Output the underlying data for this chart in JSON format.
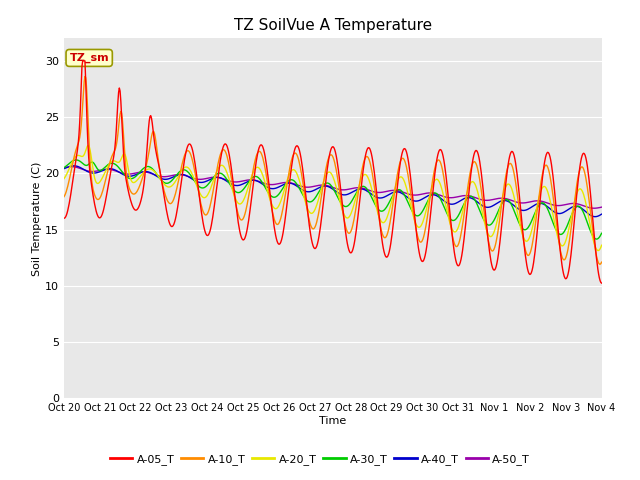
{
  "title": "TZ SoilVue A Temperature",
  "xlabel": "Time",
  "ylabel": "Soil Temperature (C)",
  "ylim": [
    0,
    32
  ],
  "yticks": [
    0,
    5,
    10,
    15,
    20,
    25,
    30
  ],
  "background_color": "#e8e8e8",
  "plot_bg_top": "#f0f0f0",
  "plot_bg_bottom": "#d8d8d8",
  "series_colors": {
    "A-05_T": "#ff0000",
    "A-10_T": "#ff8c00",
    "A-20_T": "#e8e800",
    "A-30_T": "#00cc00",
    "A-40_T": "#0000cc",
    "A-50_T": "#9900aa"
  },
  "annotation_text": "TZ_sm",
  "annotation_color": "#cc0000",
  "annotation_bg": "#ffffcc",
  "xtick_labels": [
    "Oct 20",
    "Oct 21",
    "Oct 22",
    "Oct 23",
    "Oct 24",
    "Oct 25",
    "Oct 26",
    "Oct 27",
    "Oct 28",
    "Oct 29",
    "Oct 30",
    "Oct 31",
    "Nov 1",
    "Nov 2",
    "Nov 3",
    "Nov 4"
  ]
}
